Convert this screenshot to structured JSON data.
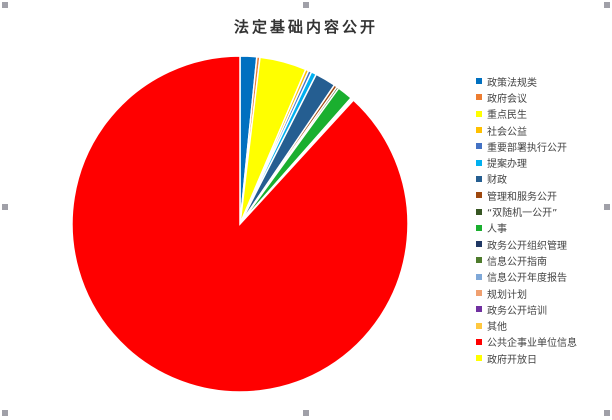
{
  "chart_data": {
    "type": "pie",
    "title": "法定基础内容公开",
    "legend_position": "right",
    "slices": [
      {
        "label": "政策法规类",
        "value": 1.6,
        "color": "#0070c0"
      },
      {
        "label": "政府会议",
        "value": 0.3,
        "color": "#ed7d31"
      },
      {
        "label": "重点民生",
        "value": 4.5,
        "color": "#ffff00"
      },
      {
        "label": "社会公益",
        "value": 0.3,
        "color": "#ffc000"
      },
      {
        "label": "重要部署执行公开",
        "value": 0.3,
        "color": "#4472c4"
      },
      {
        "label": "提案办理",
        "value": 0.5,
        "color": "#00b0f0"
      },
      {
        "label": "财政",
        "value": 2.0,
        "color": "#255e91"
      },
      {
        "label": "管理和服务公开",
        "value": 0.3,
        "color": "#9e480e"
      },
      {
        "label": "“双随机一公开”",
        "value": 0.2,
        "color": "#375623"
      },
      {
        "label": "人事",
        "value": 1.5,
        "color": "#1aaf2f"
      },
      {
        "label": "政务公开组织管理",
        "value": 0.1,
        "color": "#203864"
      },
      {
        "label": "信息公开指南",
        "value": 0.1,
        "color": "#4e7b2c"
      },
      {
        "label": "信息公开年度报告",
        "value": 0.1,
        "color": "#7fa8d8"
      },
      {
        "label": "规划计划",
        "value": 0,
        "color": "#f0a070"
      },
      {
        "label": "政务公开培训",
        "value": 0,
        "color": "#7030a0"
      },
      {
        "label": "其他",
        "value": 0,
        "color": "#ffc840"
      },
      {
        "label": "公共企事业单位信息",
        "value": 88.2,
        "color": "#ff0000"
      },
      {
        "label": "政府开放日",
        "value": 0,
        "color": "#ffff00"
      }
    ]
  }
}
